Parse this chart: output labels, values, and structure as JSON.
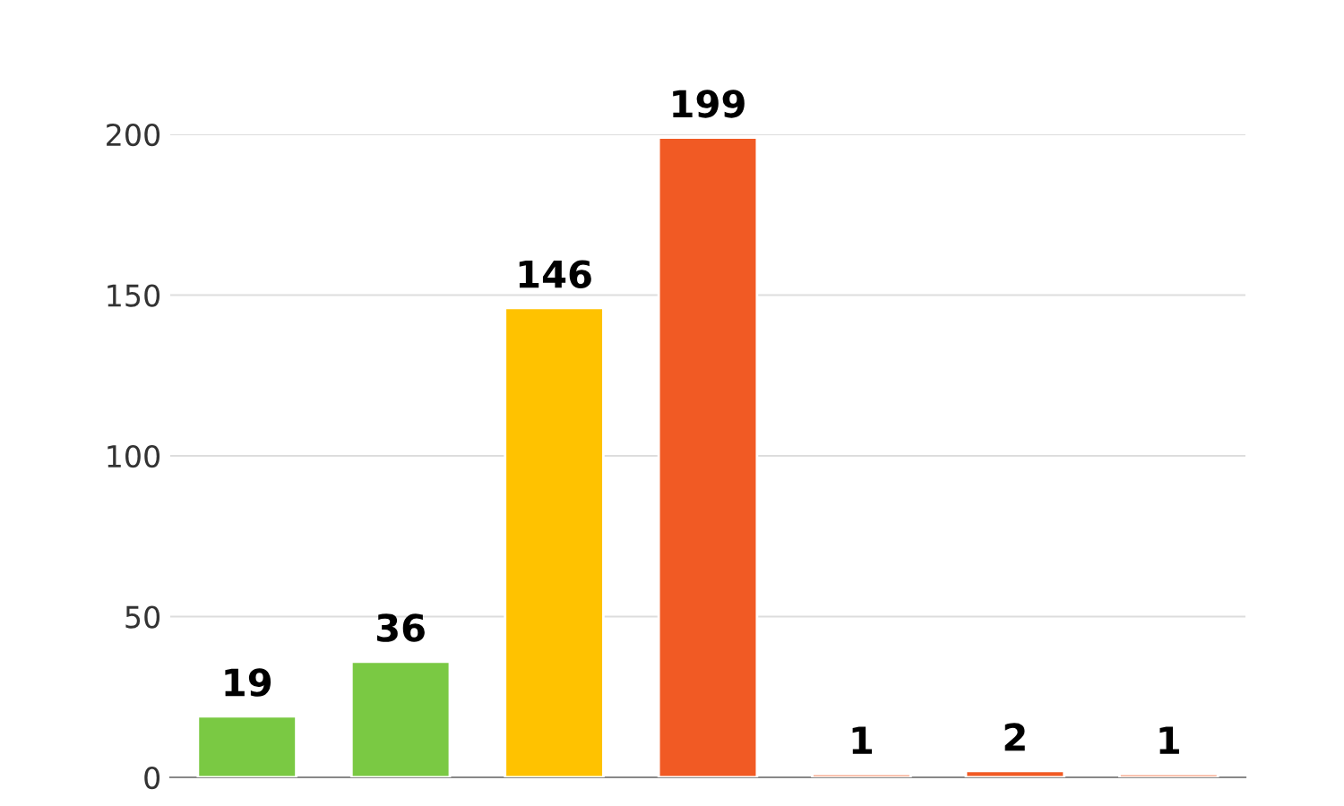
{
  "chart_data": {
    "type": "bar",
    "categories": [
      null,
      null,
      null,
      null,
      null,
      null,
      null
    ],
    "values": [
      19,
      36,
      146,
      199,
      1,
      2,
      1
    ],
    "colors": [
      "#7ac943",
      "#7ac943",
      "#ffc200",
      "#f15a24",
      "#f15a24",
      "#f15a24",
      "#f15a24"
    ],
    "ylim": [
      0,
      200
    ],
    "yticks": [
      0,
      50,
      100,
      150,
      200
    ],
    "grid": "y",
    "data_labels": true
  }
}
